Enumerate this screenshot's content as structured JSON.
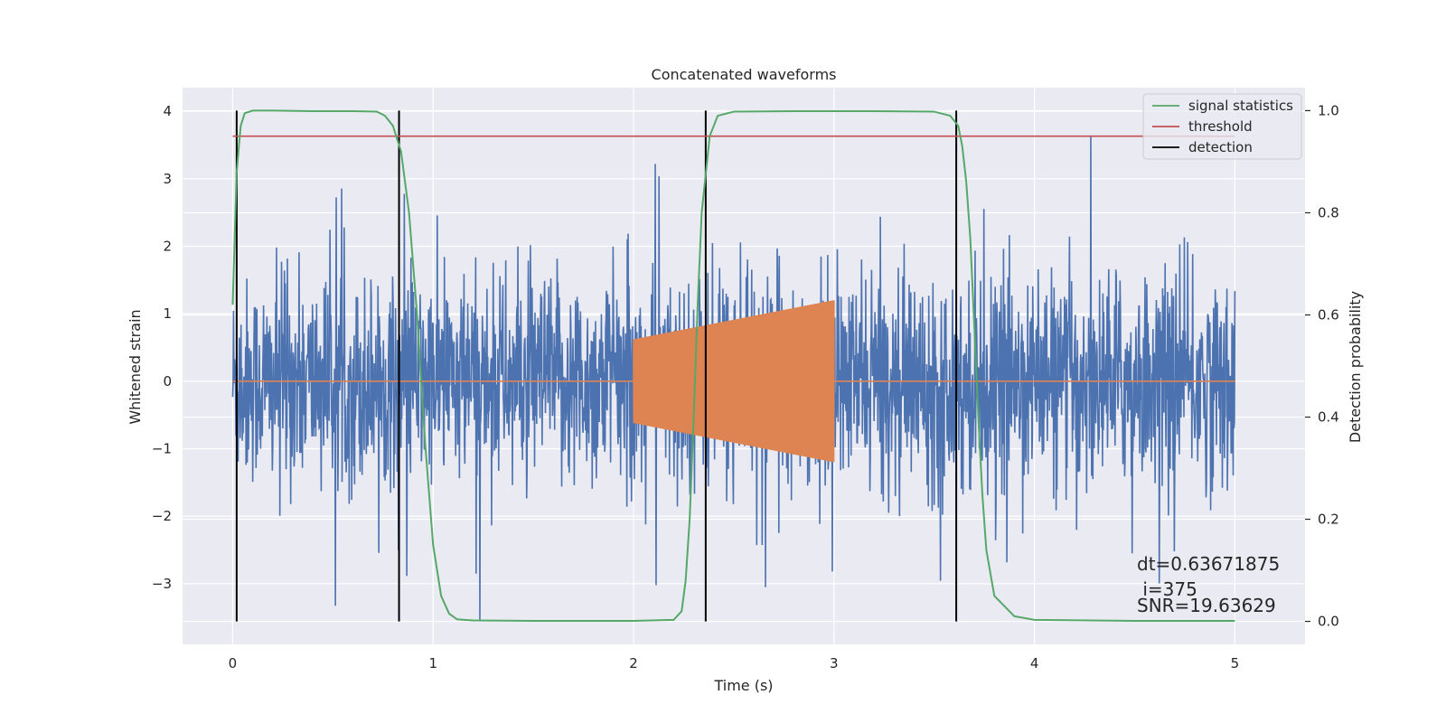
{
  "chart_data": {
    "type": "line",
    "title": "Concatenated waveforms",
    "xlabel": "Time (s)",
    "ylabel": "Whitened strain",
    "ylabel_right": "Detection probability",
    "xlim": [
      -0.25,
      5.35
    ],
    "ylim": [
      -3.9,
      4.35
    ],
    "ylim_right": [
      -0.045,
      1.045
    ],
    "x_ticks": [
      0,
      1,
      2,
      3,
      4,
      5
    ],
    "y_ticks": [
      -3,
      -2,
      -1,
      0,
      1,
      2,
      3,
      4
    ],
    "y_ticks_right": [
      0.0,
      0.2,
      0.4,
      0.6,
      0.8,
      1.0
    ],
    "x_tick_labels": [
      "0",
      "1",
      "2",
      "3",
      "4",
      "5"
    ],
    "y_tick_labels": [
      "−3",
      "−2",
      "−1",
      "0",
      "1",
      "2",
      "3",
      "4"
    ],
    "y_tick_labels_right": [
      "0.0",
      "0.2",
      "0.4",
      "0.6",
      "0.8",
      "1.0"
    ],
    "grid": true,
    "legend_position": "top-right",
    "colors": {
      "background": "#eaeaf2",
      "grid": "#ffffff",
      "strain": "#4c72b0",
      "injection": "#dd8452",
      "signal_statistics": "#55a868",
      "threshold": "#c44e52",
      "detection": "#000000"
    },
    "series": [
      {
        "name": "signal statistics",
        "axis": "right",
        "x": [
          0.0,
          0.02,
          0.04,
          0.06,
          0.1,
          0.2,
          0.4,
          0.6,
          0.72,
          0.76,
          0.8,
          0.84,
          0.88,
          0.92,
          0.96,
          1.0,
          1.04,
          1.08,
          1.12,
          1.2,
          1.5,
          2.0,
          2.2,
          2.24,
          2.26,
          2.28,
          2.3,
          2.32,
          2.34,
          2.38,
          2.42,
          2.5,
          2.8,
          3.2,
          3.5,
          3.58,
          3.62,
          3.64,
          3.66,
          3.68,
          3.7,
          3.72,
          3.74,
          3.76,
          3.8,
          3.9,
          4.0,
          4.5,
          5.0
        ],
        "y": [
          0.62,
          0.88,
          0.97,
          0.995,
          1.0,
          1.0,
          0.999,
          0.999,
          0.998,
          0.99,
          0.97,
          0.92,
          0.8,
          0.6,
          0.35,
          0.15,
          0.05,
          0.015,
          0.004,
          0.002,
          0.001,
          0.001,
          0.003,
          0.02,
          0.08,
          0.2,
          0.4,
          0.62,
          0.8,
          0.95,
          0.99,
          0.998,
          0.999,
          0.999,
          0.998,
          0.99,
          0.97,
          0.93,
          0.86,
          0.75,
          0.58,
          0.4,
          0.25,
          0.14,
          0.05,
          0.01,
          0.003,
          0.001,
          0.001
        ]
      },
      {
        "name": "threshold",
        "axis": "right",
        "x": [
          0.0,
          5.0
        ],
        "y": [
          0.95,
          0.95
        ]
      },
      {
        "name": "detection",
        "axis": "right",
        "x": [
          0.02,
          0.83,
          2.36,
          3.61
        ],
        "y_range": [
          0.0,
          1.0
        ]
      }
    ],
    "strain": {
      "axis": "left",
      "x_range": [
        0.0,
        5.0
      ],
      "noise_sigma": 0.75,
      "peak_min": -3.55,
      "peak_max": 4.0
    },
    "injection": {
      "axis": "left",
      "x_range": [
        2.0,
        3.0
      ],
      "amplitude_start": 0.62,
      "amplitude_end": 1.2,
      "flat_value": 0.0
    },
    "annotations": [
      "dt=0.63671875",
      " i=375",
      "SNR=19.63629"
    ]
  }
}
